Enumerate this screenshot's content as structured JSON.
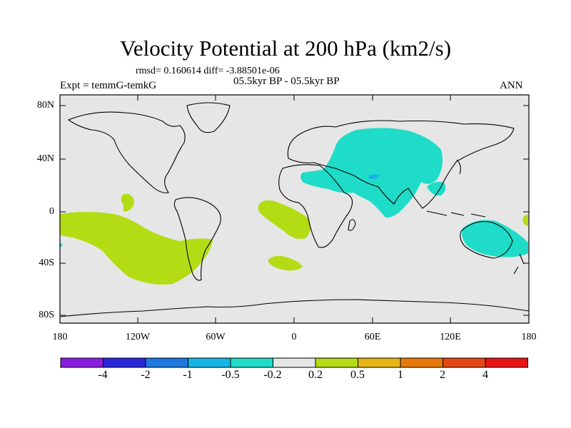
{
  "title": "Velocity Potential at 200 hPa (km2/s)",
  "stats": "rmsd= 0.160614 diff= -3.88501e-06",
  "period": "05.5kyr BP - 05.5kyr BP",
  "experiment": "Expt = temmG-temkG",
  "season": "ANN",
  "lat_labels": [
    "80N",
    "40N",
    "0",
    "40S",
    "80S"
  ],
  "lon_labels": [
    "180",
    "120W",
    "60W",
    "0",
    "60E",
    "120E",
    "180"
  ],
  "colorbar": {
    "colors": [
      "#8a1ee0",
      "#2828d8",
      "#1e78e0",
      "#14b4e6",
      "#1edcc8",
      "#e6e6e6",
      "#b4dc14",
      "#e6b414",
      "#e6780a",
      "#e64614",
      "#e61414"
    ],
    "labels": [
      "-4",
      "-2",
      "-1",
      "-0.5",
      "-0.2",
      "0.2",
      "0.5",
      "1",
      "2",
      "4"
    ]
  },
  "colors": {
    "background": "#e6e6e6",
    "negative_fill": "#1edcc8",
    "positive_fill": "#b4dc14",
    "deep_negative": "#14b4e6"
  }
}
